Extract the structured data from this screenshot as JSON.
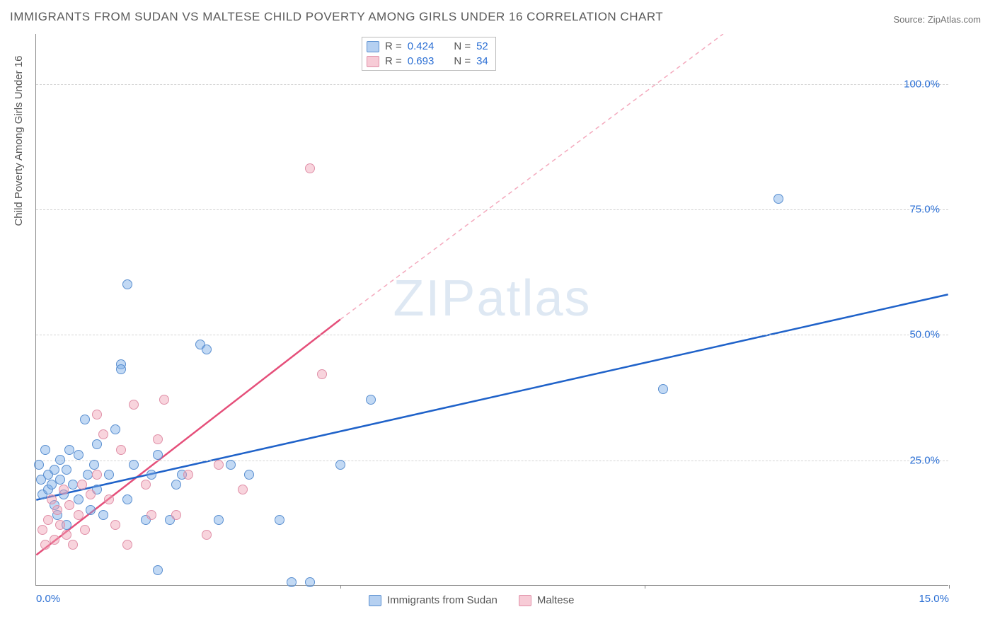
{
  "title": "IMMIGRANTS FROM SUDAN VS MALTESE CHILD POVERTY AMONG GIRLS UNDER 16 CORRELATION CHART",
  "source": "Source: ZipAtlas.com",
  "ylabel": "Child Poverty Among Girls Under 16",
  "watermark": "ZIPatlas",
  "chart": {
    "type": "scatter",
    "xlim": [
      0,
      15
    ],
    "ylim": [
      0,
      110
    ],
    "xticks": [
      0.0,
      15.0
    ],
    "xtick_labels": [
      "0.0%",
      "15.0%"
    ],
    "xtick_marks": [
      5.0,
      10.0,
      15.0
    ],
    "yticks": [
      25.0,
      50.0,
      75.0,
      100.0
    ],
    "ytick_labels": [
      "25.0%",
      "50.0%",
      "75.0%",
      "100.0%"
    ],
    "grid_color": "#d5d5d5",
    "background_color": "#ffffff",
    "marker_size": 14,
    "series": [
      {
        "name": "Immigrants from Sudan",
        "color_fill": "rgba(120,170,230,0.45)",
        "color_stroke": "#5a8fd0",
        "class": "blue",
        "R": "0.424",
        "N": "52",
        "trend": {
          "x1": 0,
          "y1": 17,
          "x2": 15,
          "y2": 58,
          "color": "#1f62c9",
          "width": 2.5,
          "dash": "none"
        },
        "points": [
          [
            0.05,
            24
          ],
          [
            0.08,
            21
          ],
          [
            0.1,
            18
          ],
          [
            0.15,
            27
          ],
          [
            0.2,
            19
          ],
          [
            0.2,
            22
          ],
          [
            0.25,
            20
          ],
          [
            0.3,
            16
          ],
          [
            0.3,
            23
          ],
          [
            0.35,
            14
          ],
          [
            0.4,
            21
          ],
          [
            0.4,
            25
          ],
          [
            0.45,
            18
          ],
          [
            0.5,
            12
          ],
          [
            0.5,
            23
          ],
          [
            0.55,
            27
          ],
          [
            0.6,
            20
          ],
          [
            0.7,
            17
          ],
          [
            0.7,
            26
          ],
          [
            0.8,
            33
          ],
          [
            0.85,
            22
          ],
          [
            0.9,
            15
          ],
          [
            0.95,
            24
          ],
          [
            1.0,
            19
          ],
          [
            1.0,
            28
          ],
          [
            1.1,
            14
          ],
          [
            1.2,
            22
          ],
          [
            1.3,
            31
          ],
          [
            1.4,
            44
          ],
          [
            1.4,
            43
          ],
          [
            1.5,
            17
          ],
          [
            1.5,
            60
          ],
          [
            1.6,
            24
          ],
          [
            1.8,
            13
          ],
          [
            1.9,
            22
          ],
          [
            2.0,
            26
          ],
          [
            2.0,
            3
          ],
          [
            2.2,
            13
          ],
          [
            2.3,
            20
          ],
          [
            2.4,
            22
          ],
          [
            2.7,
            48
          ],
          [
            2.8,
            47
          ],
          [
            3.0,
            13
          ],
          [
            3.2,
            24
          ],
          [
            3.5,
            22
          ],
          [
            4.0,
            13
          ],
          [
            4.2,
            0.5
          ],
          [
            4.5,
            0.5
          ],
          [
            5.0,
            24
          ],
          [
            5.5,
            37
          ],
          [
            10.3,
            39
          ],
          [
            12.2,
            77
          ]
        ]
      },
      {
        "name": "Maltese",
        "color_fill": "rgba(240,160,180,0.45)",
        "color_stroke": "#e090a8",
        "class": "pink",
        "R": "0.693",
        "N": "34",
        "trend_solid": {
          "x1": 0,
          "y1": 6,
          "x2": 5,
          "y2": 53,
          "color": "#e54f7a",
          "width": 2.5,
          "dash": "none"
        },
        "trend_dashed": {
          "x1": 5,
          "y1": 53,
          "x2": 11.3,
          "y2": 110,
          "color": "#f4a9bd",
          "width": 1.5,
          "dash": "6,5"
        },
        "points": [
          [
            0.1,
            11
          ],
          [
            0.15,
            8
          ],
          [
            0.2,
            13
          ],
          [
            0.25,
            17
          ],
          [
            0.3,
            9
          ],
          [
            0.35,
            15
          ],
          [
            0.4,
            12
          ],
          [
            0.45,
            19
          ],
          [
            0.5,
            10
          ],
          [
            0.55,
            16
          ],
          [
            0.6,
            8
          ],
          [
            0.7,
            14
          ],
          [
            0.75,
            20
          ],
          [
            0.8,
            11
          ],
          [
            0.9,
            18
          ],
          [
            1.0,
            34
          ],
          [
            1.0,
            22
          ],
          [
            1.1,
            30
          ],
          [
            1.2,
            17
          ],
          [
            1.3,
            12
          ],
          [
            1.4,
            27
          ],
          [
            1.5,
            8
          ],
          [
            1.6,
            36
          ],
          [
            1.8,
            20
          ],
          [
            1.9,
            14
          ],
          [
            2.0,
            29
          ],
          [
            2.1,
            37
          ],
          [
            2.3,
            14
          ],
          [
            2.5,
            22
          ],
          [
            2.8,
            10
          ],
          [
            3.0,
            24
          ],
          [
            3.4,
            19
          ],
          [
            4.5,
            83
          ],
          [
            4.7,
            42
          ]
        ]
      }
    ]
  },
  "legend_top": [
    {
      "swatch": "blue",
      "r_label": "R =",
      "r_val": "0.424",
      "n_label": "N =",
      "n_val": "52"
    },
    {
      "swatch": "pink",
      "r_label": "R =",
      "r_val": "0.693",
      "n_label": "N =",
      "n_val": "34"
    }
  ],
  "legend_bottom": [
    {
      "swatch": "blue",
      "label": "Immigrants from Sudan"
    },
    {
      "swatch": "pink",
      "label": "Maltese"
    }
  ]
}
